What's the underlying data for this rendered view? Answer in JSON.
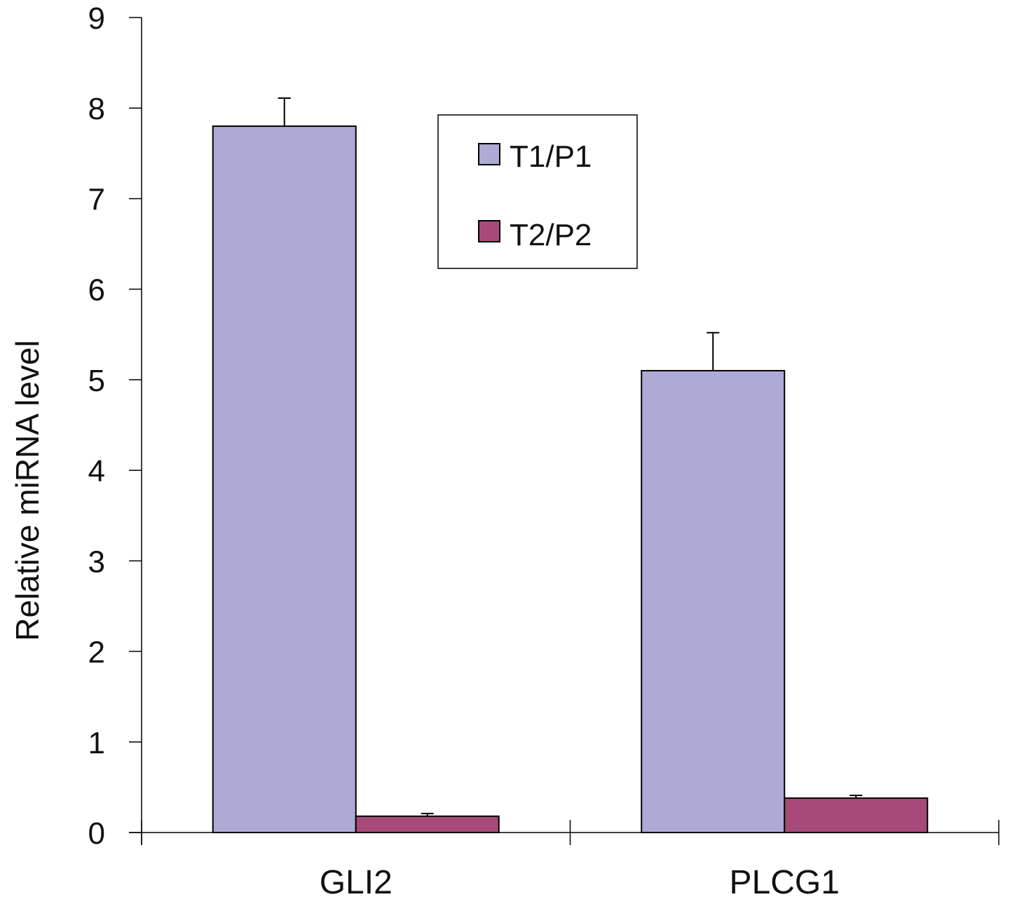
{
  "chart_data": {
    "type": "bar",
    "title": "",
    "xlabel": "",
    "ylabel": "Relative miRNA level",
    "ylim": [
      0,
      9
    ],
    "yticks": [
      0,
      1,
      2,
      3,
      4,
      5,
      6,
      7,
      8,
      9
    ],
    "categories": [
      "GLI2",
      "PLCG1"
    ],
    "series": [
      {
        "name": "T1/P1",
        "values": [
          7.8,
          5.1
        ],
        "errors": [
          0.31,
          0.42
        ],
        "color": "#adabd6"
      },
      {
        "name": "T2/P2",
        "values": [
          0.18,
          0.38
        ],
        "errors": [
          0.03,
          0.03
        ],
        "color": "#a84a79"
      }
    ],
    "legend": {
      "position": "top-center"
    },
    "grid": false
  }
}
